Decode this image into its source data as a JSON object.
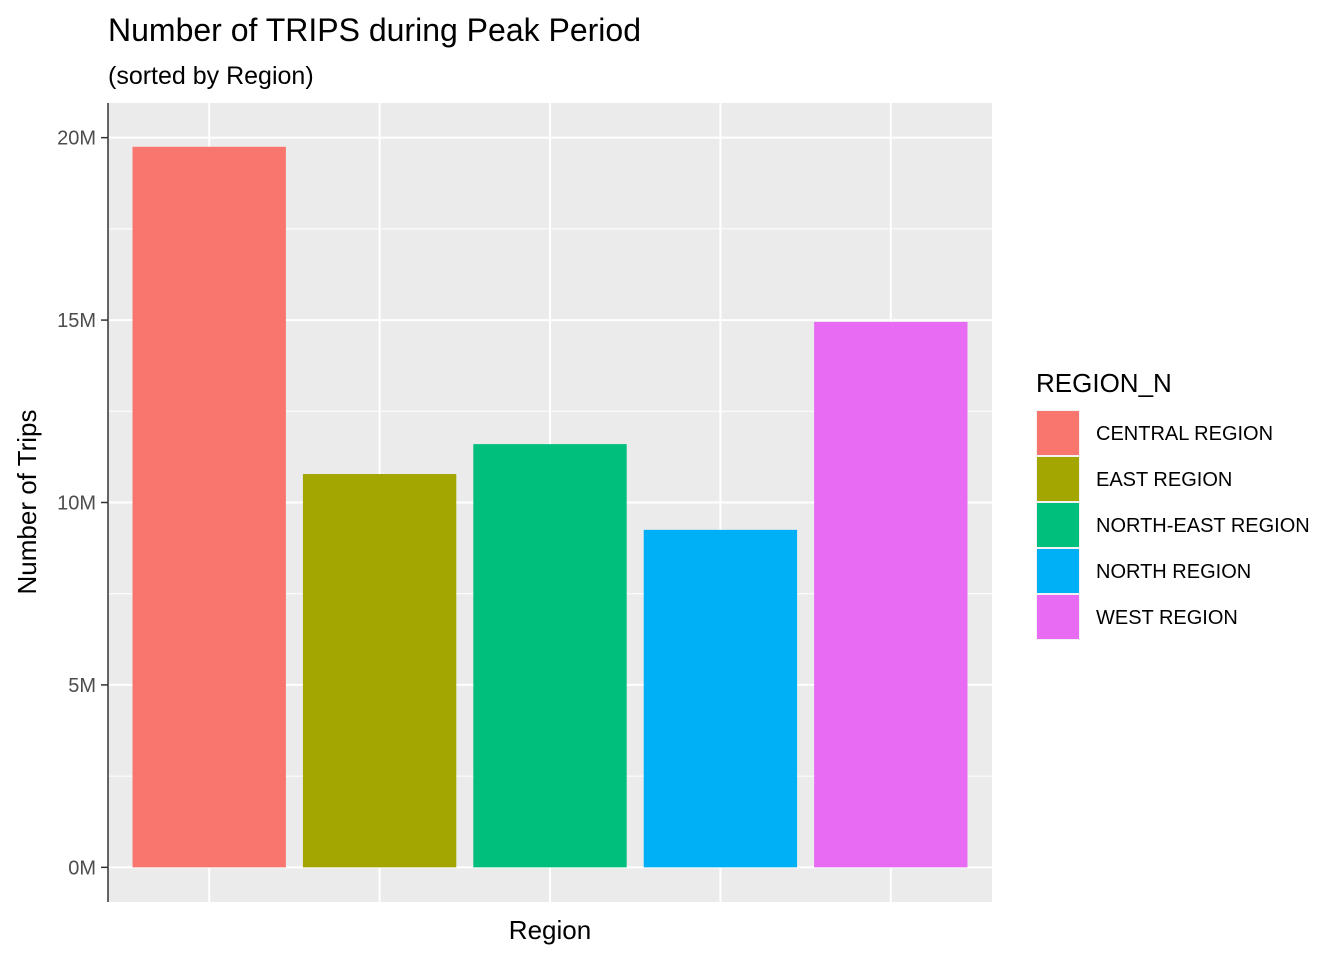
{
  "chart_data": {
    "type": "bar",
    "title": "Number of TRIPS during Peak Period",
    "subtitle": "(sorted by Region)",
    "xlabel": "Region",
    "ylabel": "Number of Trips",
    "categories": [
      "CENTRAL REGION",
      "EAST REGION",
      "NORTH-EAST REGION",
      "NORTH REGION",
      "WEST REGION"
    ],
    "values": [
      19750000,
      10780000,
      11600000,
      9250000,
      14950000
    ],
    "colors": [
      "#F8766D",
      "#A3A500",
      "#00BF7D",
      "#00B0F6",
      "#E76BF3"
    ],
    "ylim": [
      -950000,
      20950000
    ],
    "yticks": [
      0,
      5000000,
      10000000,
      15000000,
      20000000
    ],
    "ytick_labels": [
      "0M",
      "5M",
      "10M",
      "15M",
      "20M"
    ],
    "x_tick_labels_shown": false,
    "grid": true,
    "panel_background": "#EBEBEB",
    "legend": {
      "title": "REGION_N",
      "position": "right",
      "items": [
        "CENTRAL REGION",
        "EAST REGION",
        "NORTH-EAST REGION",
        "NORTH REGION",
        "WEST REGION"
      ]
    }
  }
}
